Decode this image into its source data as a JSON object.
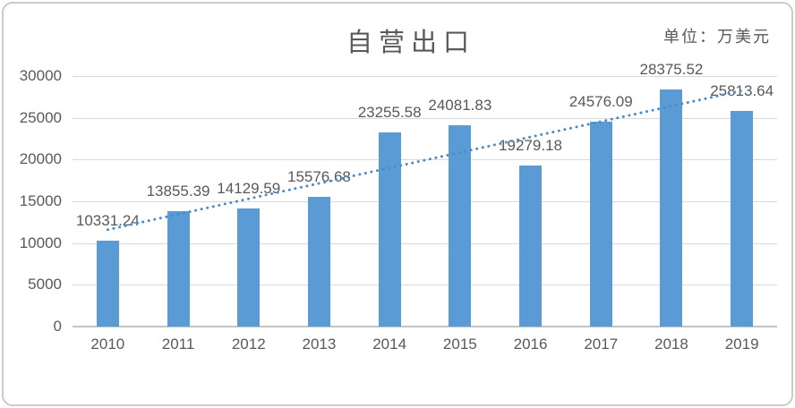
{
  "header": {
    "title": "自营出口",
    "unit_label": "单位：万美元"
  },
  "colors": {
    "bar": "#5b9bd5",
    "trendline": "#4a8ccc",
    "gridline": "#d9d9d9",
    "axis_line": "#c3c3c3",
    "text": "#595959",
    "frame_border": "#cbcbcb"
  },
  "chart_data": {
    "type": "bar",
    "title": "自营出口",
    "unit": "万美元",
    "categories": [
      "2010",
      "2011",
      "2012",
      "2013",
      "2014",
      "2015",
      "2016",
      "2017",
      "2018",
      "2019"
    ],
    "values": [
      10331.24,
      13855.39,
      14129.59,
      15576.68,
      23255.58,
      24081.83,
      19279.18,
      24576.09,
      28375.52,
      25813.64
    ],
    "data_labels": [
      "10331.24",
      "13855.39",
      "14129.59",
      "15576.68",
      "23255.58",
      "24081.83",
      "19279.18",
      "24576.09",
      "28375.52",
      "25813.64"
    ],
    "xlabel": "",
    "ylabel": "",
    "ylim": [
      0,
      30000
    ],
    "ytick_step": 5000,
    "ytick_labels": [
      "0",
      "5000",
      "10000",
      "15000",
      "20000",
      "25000",
      "30000"
    ],
    "grid": true,
    "legend": false,
    "trendline": {
      "type": "linear",
      "style": "dotted"
    }
  }
}
